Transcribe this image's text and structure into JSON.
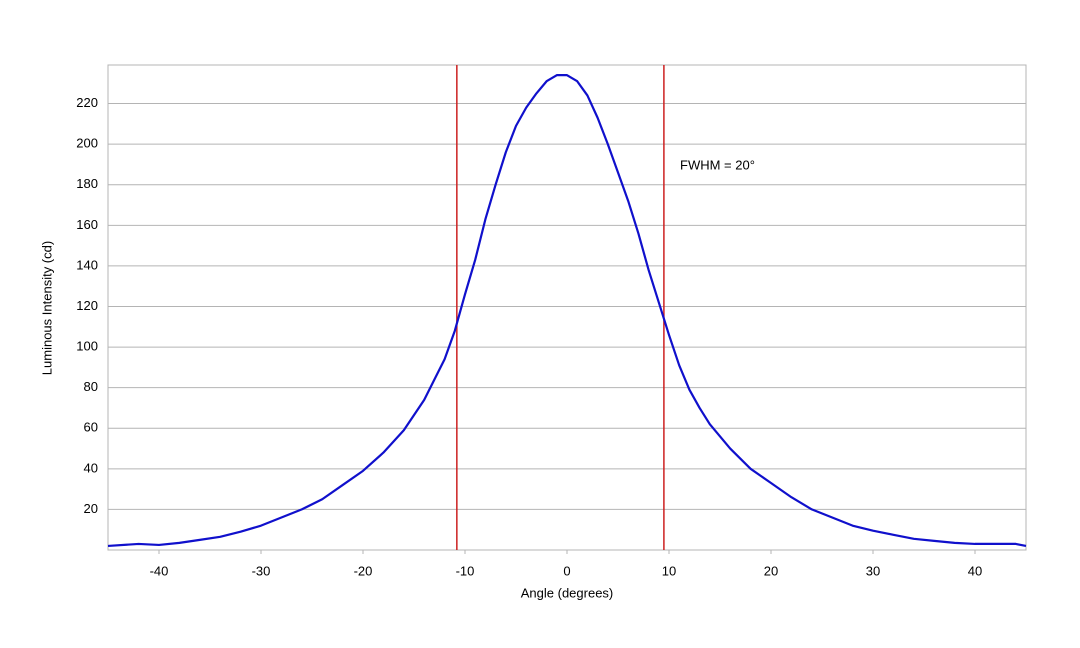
{
  "chart_data": {
    "type": "line",
    "x_label": "Angle (degrees)",
    "y_label": "Luminous Intensity (cd)",
    "annotation": "FWHM = 20°",
    "x": [
      -45,
      -42,
      -40,
      -38,
      -36,
      -34,
      -32,
      -30,
      -28,
      -26,
      -24,
      -22,
      -20,
      -18,
      -16,
      -14,
      -12,
      -11,
      -10,
      -9,
      -8,
      -7,
      -6,
      -5,
      -4,
      -3,
      -2,
      -1,
      0,
      1,
      2,
      3,
      4,
      5,
      6,
      7,
      8,
      9,
      10,
      11,
      12,
      13,
      14,
      16,
      18,
      20,
      22,
      24,
      26,
      28,
      30,
      32,
      34,
      36,
      38,
      40,
      42,
      44,
      45
    ],
    "series": [
      {
        "color": "#1010cc",
        "values": [
          2,
          3,
          2.5,
          3.5,
          5,
          6.5,
          9,
          12,
          16,
          20,
          25,
          32,
          39,
          48,
          59,
          74,
          94,
          108,
          126,
          143,
          163,
          180,
          196,
          209,
          218,
          225,
          231,
          234,
          234,
          231,
          224,
          213,
          200,
          186,
          172,
          156,
          138,
          122,
          106,
          91,
          79,
          70,
          62,
          50,
          40,
          33,
          26,
          20,
          16,
          12,
          9.5,
          7.5,
          5.5,
          4.5,
          3.5,
          3,
          3,
          3,
          2
        ]
      }
    ],
    "vlines": [
      -10.8,
      9.5
    ],
    "vline_color": "#cc2020",
    "xlim": [
      -45,
      45
    ],
    "ylim": [
      0,
      239
    ],
    "xticks": [
      -40,
      -30,
      -20,
      -10,
      0,
      10,
      20,
      30,
      40
    ],
    "yticks": [
      20,
      40,
      60,
      80,
      100,
      120,
      140,
      160,
      180,
      200,
      220
    ],
    "grid": true
  }
}
